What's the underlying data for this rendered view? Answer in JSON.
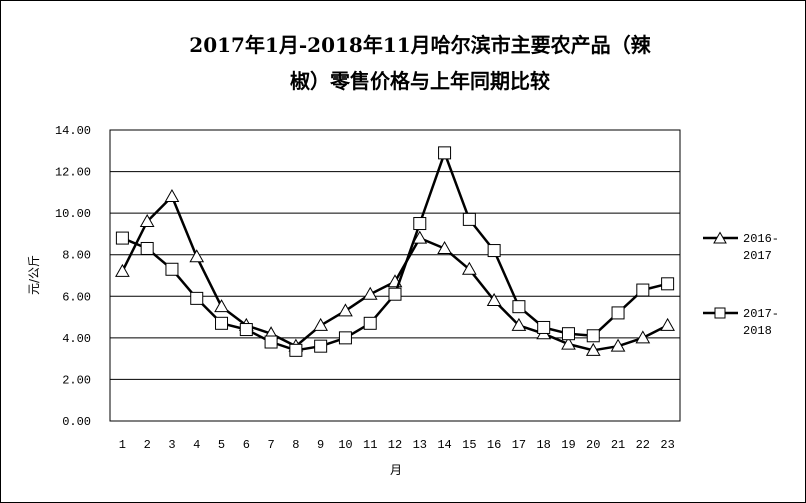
{
  "chart_data": {
    "type": "line",
    "title_line1": "2017年1月-2018年11月哈尔滨市主要农产品（辣",
    "title_line2": "椒）零售价格与上年同期比较",
    "xlabel": "月",
    "ylabel": "元/公斤",
    "x": [
      1,
      2,
      3,
      4,
      5,
      6,
      7,
      8,
      9,
      10,
      11,
      12,
      13,
      14,
      15,
      16,
      17,
      18,
      19,
      20,
      21,
      22,
      23
    ],
    "xtick_labels": [
      "1",
      "2",
      "3",
      "4",
      "5",
      "6",
      "7",
      "8",
      "9",
      "10",
      "11",
      "12",
      "13",
      "14",
      "15",
      "16",
      "17",
      "18",
      "19",
      "20",
      "21",
      "22",
      "23"
    ],
    "ytick_labels": [
      "0.00",
      "2.00",
      "4.00",
      "6.00",
      "8.00",
      "10.00",
      "12.00",
      "14.00"
    ],
    "ylim": [
      0,
      14
    ],
    "grid": "horizontal",
    "legend_position": "right",
    "series": [
      {
        "name_line1": "2016-",
        "name_line2": "2017",
        "marker": "triangle",
        "values": [
          7.2,
          9.6,
          10.8,
          7.9,
          5.5,
          4.6,
          4.2,
          3.6,
          4.6,
          5.3,
          6.1,
          6.7,
          8.8,
          8.3,
          7.3,
          5.8,
          4.6,
          4.2,
          3.7,
          3.4,
          3.6,
          4.0,
          4.6
        ]
      },
      {
        "name_line1": "2017-",
        "name_line2": "2018",
        "marker": "square",
        "values": [
          8.8,
          8.3,
          7.3,
          5.9,
          4.7,
          4.4,
          3.8,
          3.4,
          3.6,
          4.0,
          4.7,
          6.1,
          9.5,
          12.9,
          9.7,
          8.2,
          5.5,
          4.5,
          4.2,
          4.1,
          5.2,
          6.3,
          6.6
        ]
      }
    ],
    "colors": {
      "line": "#000000",
      "marker_fill": "#ffffff",
      "grid": "#000000",
      "frame": "#000000"
    }
  }
}
